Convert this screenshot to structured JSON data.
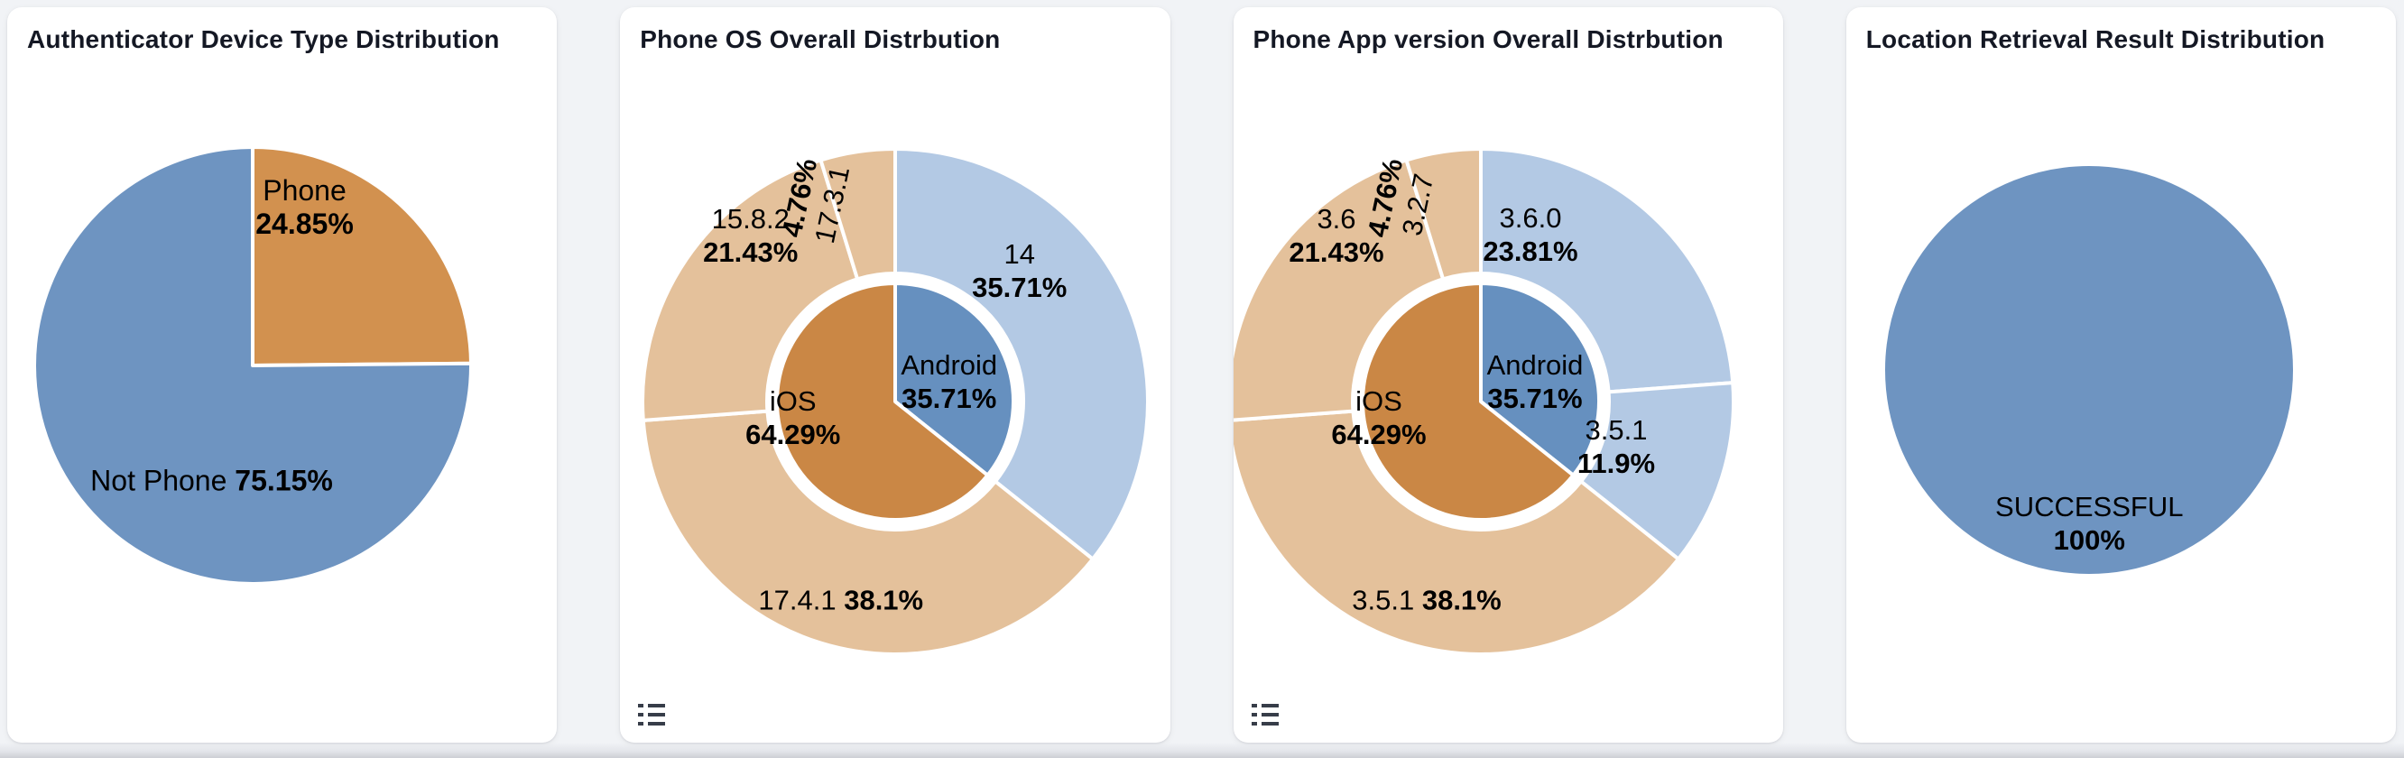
{
  "colors": {
    "blue": "#6e94c1",
    "orange": "#d2914f",
    "android_blue": "#6690bf",
    "ios_orange": "#ca8745",
    "light_blue": "#b3c9e4",
    "tan": "#e4c19b",
    "slice_border": "#ffffff",
    "icon": "#373d49",
    "title_text": "#141824",
    "label_text": "#000000",
    "page_bg": "#f1f3f6",
    "card_bg": "#ffffff"
  },
  "chart_data": [
    {
      "type": "pie",
      "title": "Authenticator Device Type Distribution",
      "legend_icon": false,
      "legend_position": "none",
      "start_angle_deg": 0,
      "direction": "clockwise",
      "layout": {
        "cx_offset": -33,
        "cy": 397,
        "r_outer": 242,
        "label_size": 32
      },
      "series": [
        {
          "ring": "single",
          "slices": [
            {
              "name": "Phone",
              "value": 24.85,
              "pct": "24.85%",
              "color": "orange",
              "label": {
                "dx": 58,
                "dy": -175,
                "style": "two-line",
                "rotate": 0
              }
            },
            {
              "name": "Not Phone",
              "value": 75.15,
              "pct": "75.15%",
              "color": "blue",
              "label": {
                "dx": -45,
                "dy": 128,
                "style": "inline",
                "rotate": 0
              }
            }
          ]
        }
      ]
    },
    {
      "type": "sunburst",
      "title": "Phone OS Overall Distrbution",
      "legend_icon": true,
      "legend_position": "bottom-left",
      "start_angle_deg": 0,
      "direction": "clockwise",
      "layout": {
        "cx_offset": 0,
        "cy": 437,
        "r_outer": 280,
        "r_ring_inner": 142,
        "r_disc": 131,
        "label_size": 31
      },
      "series": [
        {
          "ring": "inner",
          "slices": [
            {
              "name": "Android",
              "value": 35.71,
              "pct": "35.71%",
              "color": "android_blue",
              "label": {
                "dx": 60,
                "dy": -22,
                "style": "two-line",
                "rotate": 0
              }
            },
            {
              "name": "iOS",
              "value": 64.29,
              "pct": "64.29%",
              "color": "ios_orange",
              "label": {
                "dx": -113,
                "dy": 18,
                "style": "two-line",
                "rotate": 0
              }
            }
          ]
        },
        {
          "ring": "outer",
          "slices": [
            {
              "name": "14",
              "value": 35.71,
              "pct": "35.71%",
              "color": "light_blue",
              "label": {
                "dx": 138,
                "dy": -145,
                "style": "two-line",
                "rotate": 0
              }
            },
            {
              "name": "17.4.1",
              "value": 38.1,
              "pct": "38.1%",
              "color": "tan",
              "label": {
                "dx": -60,
                "dy": 220,
                "style": "inline",
                "rotate": 0
              }
            },
            {
              "name": "15.8.2",
              "value": 21.43,
              "pct": "21.43%",
              "color": "tan",
              "label": {
                "dx": -160,
                "dy": -184,
                "style": "two-line",
                "rotate": 0
              }
            },
            {
              "name": "17.3.1",
              "value": 4.76,
              "pct": "4.76%",
              "color": "tan",
              "label": {
                "dx": -88,
                "dy": -222,
                "style": "two-line",
                "rotate": -78
              }
            }
          ]
        }
      ]
    },
    {
      "type": "sunburst",
      "title": "Phone App version Overall Distrbution",
      "legend_icon": true,
      "legend_position": "bottom-left",
      "start_angle_deg": 0,
      "direction": "clockwise",
      "layout": {
        "cx_offset": -30,
        "cy": 437,
        "r_outer": 280,
        "r_ring_inner": 142,
        "r_disc": 131,
        "label_size": 31
      },
      "series": [
        {
          "ring": "inner",
          "slices": [
            {
              "name": "Android",
              "value": 35.71,
              "pct": "35.71%",
              "color": "android_blue",
              "label": {
                "dx": 60,
                "dy": -22,
                "style": "two-line",
                "rotate": 0
              }
            },
            {
              "name": "iOS",
              "value": 64.29,
              "pct": "64.29%",
              "color": "ios_orange",
              "label": {
                "dx": -113,
                "dy": 18,
                "style": "two-line",
                "rotate": 0
              }
            }
          ]
        },
        {
          "ring": "outer",
          "slices": [
            {
              "name": "3.6.0",
              "value": 23.81,
              "pct": "23.81%",
              "color": "light_blue",
              "label": {
                "dx": 55,
                "dy": -185,
                "style": "two-line",
                "rotate": 0
              }
            },
            {
              "name": "3.5.1",
              "value": 11.9,
              "pct": "11.9%",
              "color": "light_blue",
              "label": {
                "dx": 150,
                "dy": 50,
                "style": "two-line",
                "rotate": 0
              }
            },
            {
              "name": "3.5.1",
              "value": 38.1,
              "pct": "38.1%",
              "color": "tan",
              "label": {
                "dx": -60,
                "dy": 220,
                "style": "inline",
                "rotate": 0
              }
            },
            {
              "name": "3.6",
              "value": 21.43,
              "pct": "21.43%",
              "color": "tan",
              "label": {
                "dx": -160,
                "dy": -184,
                "style": "two-line",
                "rotate": 0
              }
            },
            {
              "name": "3.2.7",
              "value": 4.76,
              "pct": "4.76%",
              "color": "tan",
              "label": {
                "dx": -88,
                "dy": -222,
                "style": "two-line",
                "rotate": -78
              }
            }
          ]
        }
      ]
    },
    {
      "type": "pie",
      "title": "Location Retrieval Result Distribution",
      "legend_icon": false,
      "legend_position": "none",
      "start_angle_deg": 0,
      "direction": "clockwise",
      "layout": {
        "cx_offset": -35,
        "cy": 402,
        "r_outer": 228,
        "label_size": 31
      },
      "series": [
        {
          "ring": "single",
          "slices": [
            {
              "name": "SUCCESSFUL",
              "value": 100,
              "pct": "100%",
              "color": "blue",
              "label": {
                "dx": 0,
                "dy": 170,
                "style": "two-line",
                "rotate": 0
              }
            }
          ]
        }
      ]
    }
  ]
}
